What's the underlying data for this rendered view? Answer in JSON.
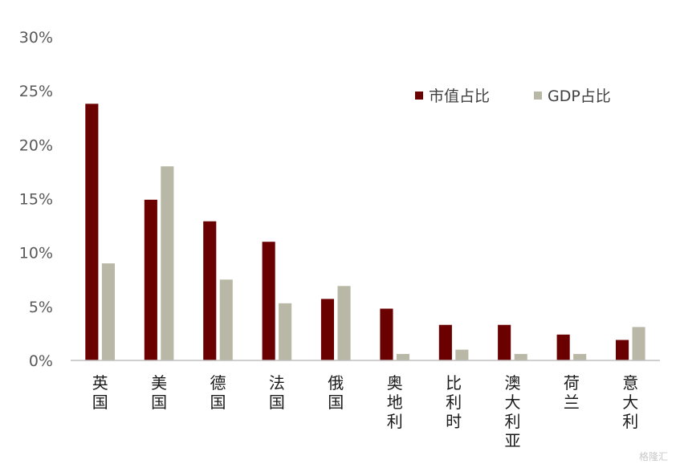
{
  "chart_data": {
    "type": "bar",
    "categories": [
      "英国",
      "美国",
      "德国",
      "法国",
      "俄国",
      "奥地利",
      "比利时",
      "澳大利亚",
      "荷兰",
      "意大利"
    ],
    "series": [
      {
        "name": "市值占比",
        "color": "#6b0000",
        "values": [
          23.8,
          14.9,
          12.9,
          11.0,
          5.7,
          4.8,
          3.3,
          3.3,
          2.4,
          1.9
        ]
      },
      {
        "name": "GDP占比",
        "color": "#b9b8a6",
        "values": [
          9.0,
          18.0,
          7.5,
          5.3,
          6.9,
          0.6,
          1.0,
          0.6,
          0.6,
          3.1
        ]
      }
    ],
    "y_ticks": [
      "0%",
      "5%",
      "10%",
      "15%",
      "20%",
      "25%",
      "30%"
    ],
    "ylim": [
      0,
      30
    ],
    "legend_position": "top-right",
    "grid": false
  },
  "watermark": "格隆汇"
}
